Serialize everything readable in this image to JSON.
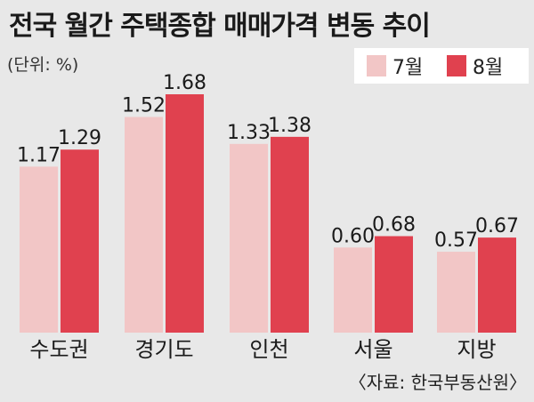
{
  "title": "전국 월간 주택종합 매매가격 변동 추이",
  "unit_label": "(단위: %)",
  "source": "〈자료: 한국부동산원〉",
  "colors": {
    "july": "#f2c6c6",
    "august": "#e0414f"
  },
  "chart_data": {
    "type": "bar",
    "title": "전국 월간 주택종합 매매가격 변동 추이",
    "unit": "(단위: %)",
    "categories": [
      "수도권",
      "경기도",
      "인천",
      "서울",
      "지방"
    ],
    "series": [
      {
        "name": "7월",
        "values": [
          1.17,
          1.52,
          1.33,
          0.6,
          0.57
        ]
      },
      {
        "name": "8월",
        "values": [
          1.29,
          1.68,
          1.38,
          0.68,
          0.67
        ]
      }
    ],
    "value_labels": [
      [
        "1.17",
        "1.52",
        "1.33",
        "0.60",
        "0.57"
      ],
      [
        "1.29",
        "1.68",
        "1.38",
        "0.68",
        "0.67"
      ]
    ],
    "legend": "top-right",
    "grid": false,
    "ylim": [
      0,
      1.68
    ]
  }
}
